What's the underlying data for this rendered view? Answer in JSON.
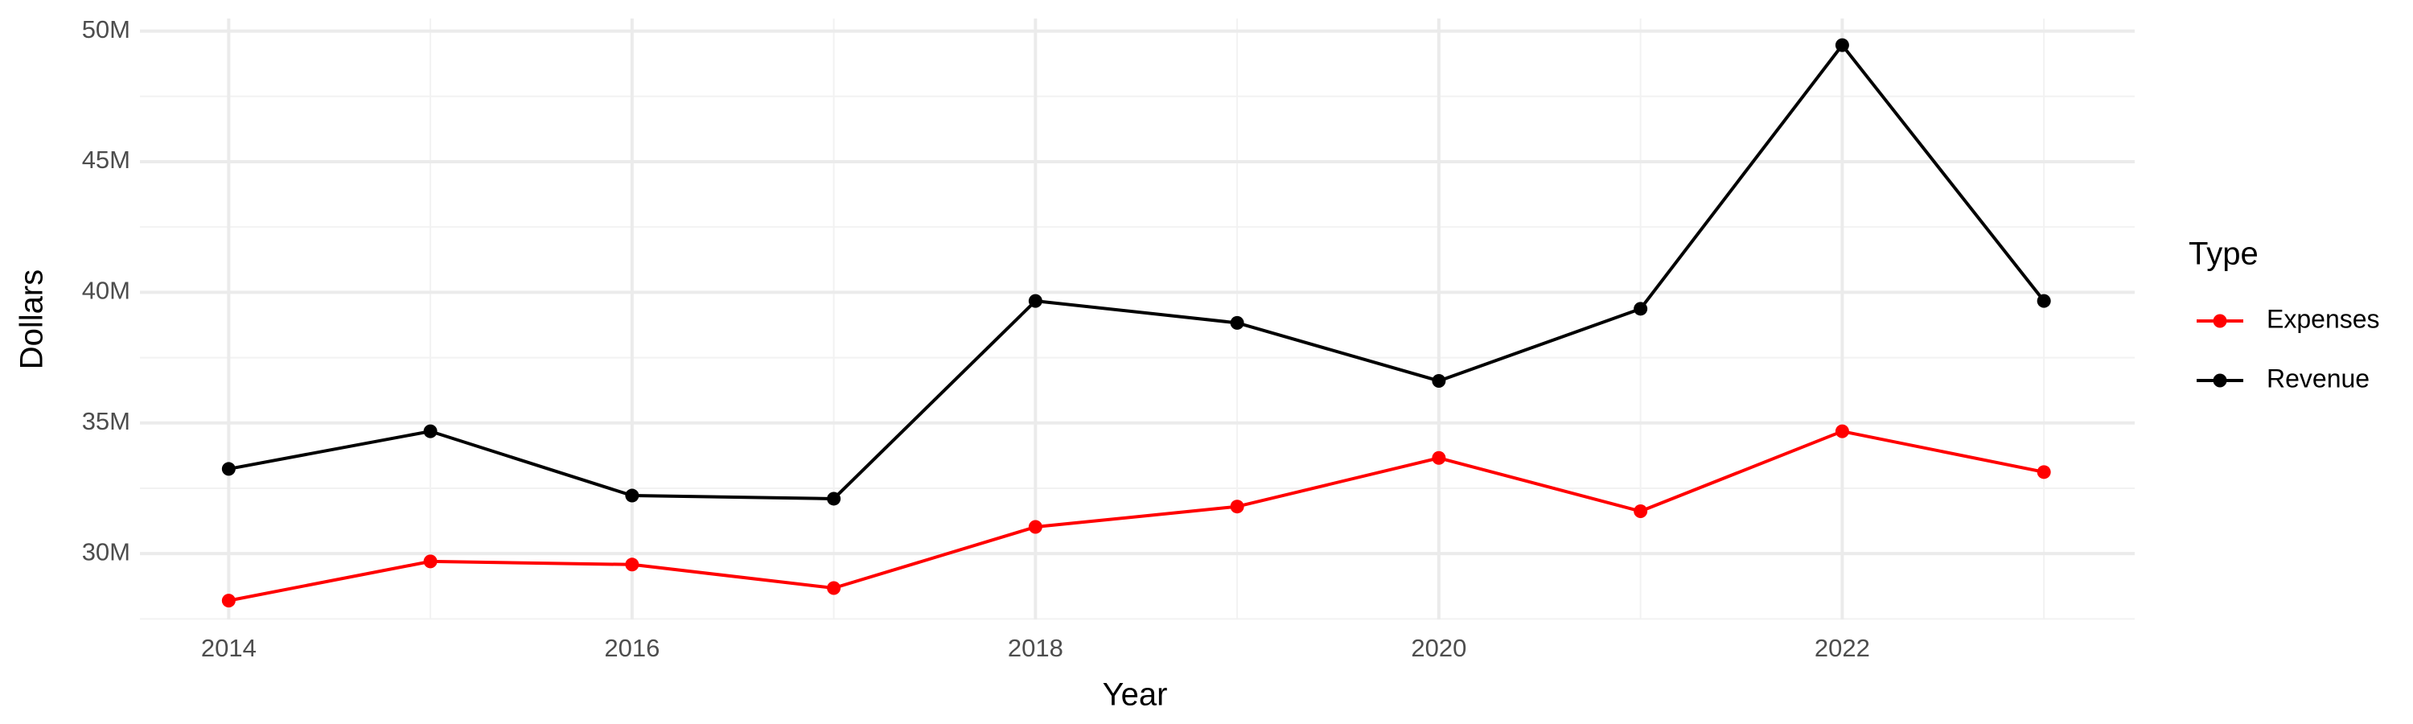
{
  "chart_data": {
    "type": "line",
    "x_label": "Year",
    "y_label": "Dollars",
    "legend_title": "Type",
    "x": [
      2014,
      2015,
      2016,
      2017,
      2018,
      2019,
      2020,
      2021,
      2022,
      2023
    ],
    "series": [
      {
        "name": "Expenses",
        "color": "#ff0000",
        "values": [
          28200000,
          29700000,
          29580000,
          28680000,
          31020000,
          31800000,
          33660000,
          31620000,
          34680000,
          33120000
        ]
      },
      {
        "name": "Revenue",
        "color": "#000000",
        "values": [
          33240000,
          34680000,
          32220000,
          32100000,
          39670000,
          38830000,
          36610000,
          39370000,
          49460000,
          39670000
        ]
      }
    ],
    "xlim": [
      2013.56,
      2023.45
    ],
    "xticks": [
      2014,
      2016,
      2018,
      2020,
      2022
    ],
    "ylim": [
      27480000,
      50480000
    ],
    "yticks": [
      {
        "value": 30000000,
        "label": "30M"
      },
      {
        "value": 35000000,
        "label": "35M"
      },
      {
        "value": 40000000,
        "label": "40M"
      },
      {
        "value": 45000000,
        "label": "45M"
      },
      {
        "value": 50000000,
        "label": "50M"
      }
    ],
    "grid": true,
    "legend": "right"
  }
}
